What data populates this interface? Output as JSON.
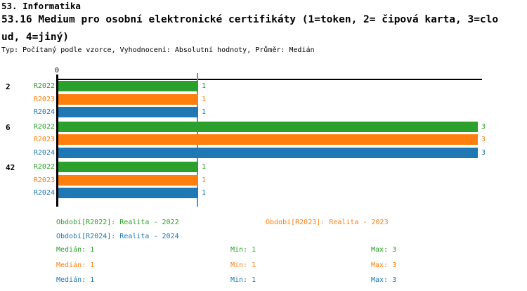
{
  "header": {
    "section_title": "53. Informatika",
    "question_title": "53.16 Medium pro osobní elektronické certifikáty (1=token, 2= čipová karta, 3=cloud, 4=jiný)",
    "meta": "Typ: Počítaný podle vzorce, Vyhodnocení: Absolutní hodnoty, Průměr: Medián"
  },
  "chart_data": {
    "type": "bar",
    "orientation": "horizontal",
    "title": "53.16 Medium pro osobní elektronické certifikáty (1=token, 2= čipová karta, 3=cloud, 4=jiný)",
    "x_axis": {
      "zero_tick_label": "0",
      "xlim": [
        0,
        3
      ],
      "grid": false
    },
    "median_reference_line": 1,
    "categories": [
      "2",
      "6",
      "42"
    ],
    "series": [
      {
        "name": "R2022",
        "color": "#2ca02c",
        "values": [
          1,
          3,
          1
        ]
      },
      {
        "name": "R2023",
        "color": "#ff7f0e",
        "values": [
          1,
          3,
          1
        ]
      },
      {
        "name": "R2024",
        "color": "#1f77b4",
        "values": [
          1,
          3,
          1
        ]
      }
    ],
    "legend": [
      {
        "text": "Období[R2022]: Realita - 2022",
        "color": "#2ca02c"
      },
      {
        "text": "Období[R2023]: Realita - 2023",
        "color": "#ff7f0e"
      },
      {
        "text": "Období[R2024]: Realita - 2024",
        "color": "#1f77b4"
      }
    ],
    "stat_labels": {
      "median": "Medián",
      "min": "Min",
      "max": "Max"
    },
    "stats": [
      {
        "series": "R2022",
        "color": "#2ca02c",
        "median": 1,
        "min": 1,
        "max": 3
      },
      {
        "series": "R2023",
        "color": "#ff7f0e",
        "median": 1,
        "min": 1,
        "max": 3
      },
      {
        "series": "R2024",
        "color": "#1f77b4",
        "median": 1,
        "min": 1,
        "max": 3
      }
    ]
  },
  "colors": {
    "axis": "#000000",
    "median_line": "#4f97c5",
    "background": "#ffffff",
    "text": "#000000"
  }
}
